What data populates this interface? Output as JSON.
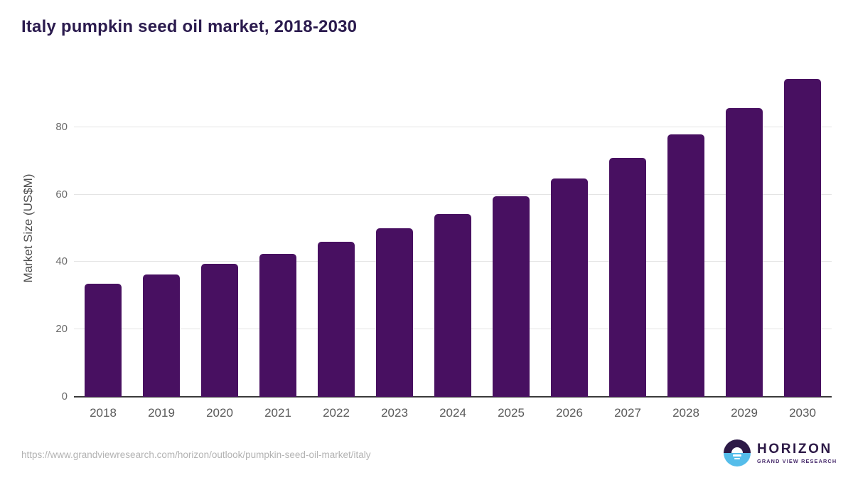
{
  "page": {
    "source_url": "https://www.grandviewresearch.com/horizon/outlook/pumpkin-seed-oil-market/italy"
  },
  "logo": {
    "name": "HORIZON",
    "subtitle": "GRAND VIEW RESEARCH",
    "icon": "sun-over-horizon-icon"
  },
  "colors": {
    "bar": "#481061",
    "title": "#2b1b4e",
    "gridline": "#e4e4e4",
    "axis_line": "#3a3a3a",
    "axis_text": "#595959",
    "url_text": "#b3b3b3",
    "logo_purple": "#2d1a47",
    "logo_blue": "#55bdea"
  },
  "chart_data": {
    "type": "bar",
    "title": "Italy pumpkin seed oil market, 2018-2030",
    "categories": [
      "2018",
      "2019",
      "2020",
      "2021",
      "2022",
      "2023",
      "2024",
      "2025",
      "2026",
      "2027",
      "2028",
      "2029",
      "2030"
    ],
    "values": [
      33.5,
      36.3,
      39.4,
      42.4,
      45.9,
      50.0,
      54.2,
      59.4,
      64.8,
      70.9,
      77.9,
      85.7,
      94.3
    ],
    "xlabel": "",
    "ylabel": "Market Size (US$M)",
    "yticks": [
      0,
      20,
      40,
      60,
      80
    ],
    "ylim": [
      0,
      100
    ],
    "grid": "horizontal",
    "legend": "none",
    "bar_color": "#481061"
  }
}
